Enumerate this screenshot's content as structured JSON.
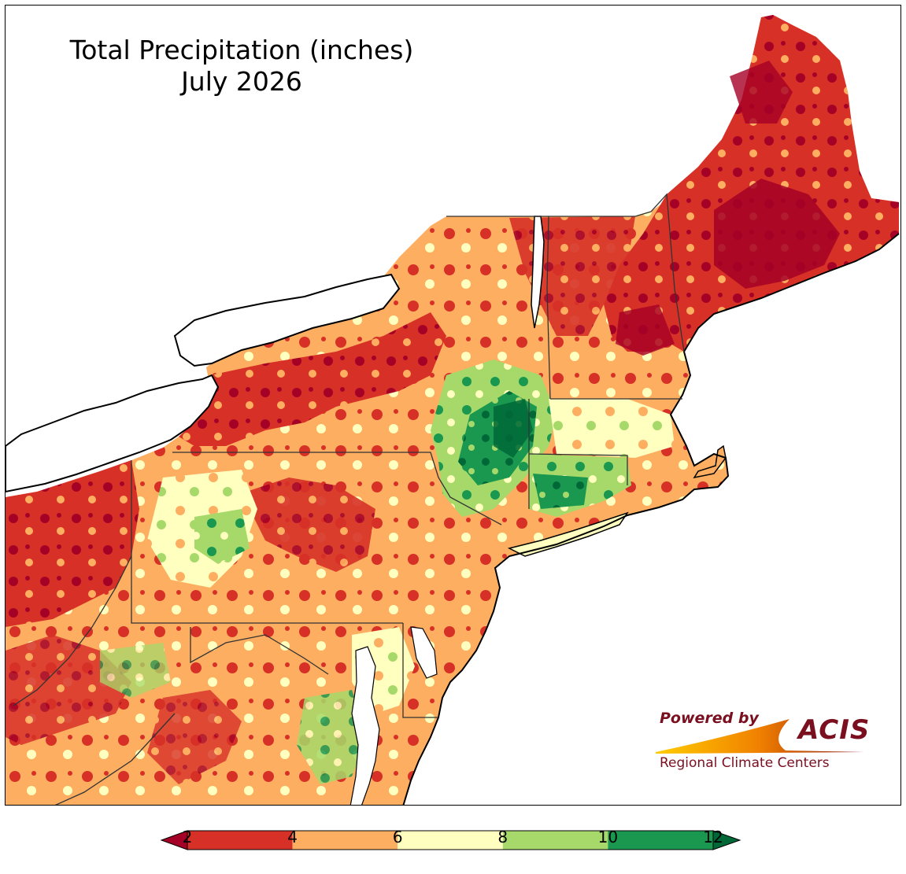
{
  "title": {
    "line1": "Total Precipitation (inches)",
    "line2": "July 2026"
  },
  "logo": {
    "powered_by": "Powered by",
    "brand": "ACIS",
    "subtitle": "Regional Climate Centers"
  },
  "colorbar": {
    "ticks": [
      "2",
      "4",
      "6",
      "8",
      "10",
      "12"
    ],
    "colors": [
      "#a50026",
      "#d73027",
      "#fdae61",
      "#ffffbf",
      "#a6d96a",
      "#1a9850",
      "#006837"
    ],
    "bins": [
      {
        "min": 2,
        "max": 4,
        "color": "#d73027"
      },
      {
        "min": 4,
        "max": 6,
        "color": "#fdae61"
      },
      {
        "min": 6,
        "max": 8,
        "color": "#ffffbf"
      },
      {
        "min": 8,
        "max": 10,
        "color": "#a6d96a"
      },
      {
        "min": 10,
        "max": 12,
        "color": "#1a9850"
      }
    ],
    "under_color": "#a50026",
    "over_color": "#006837"
  },
  "map": {
    "region": "Northeast United States",
    "colors": {
      "lake": "#ffffff",
      "ocean": "#ffffff",
      "border": "#000000"
    }
  }
}
